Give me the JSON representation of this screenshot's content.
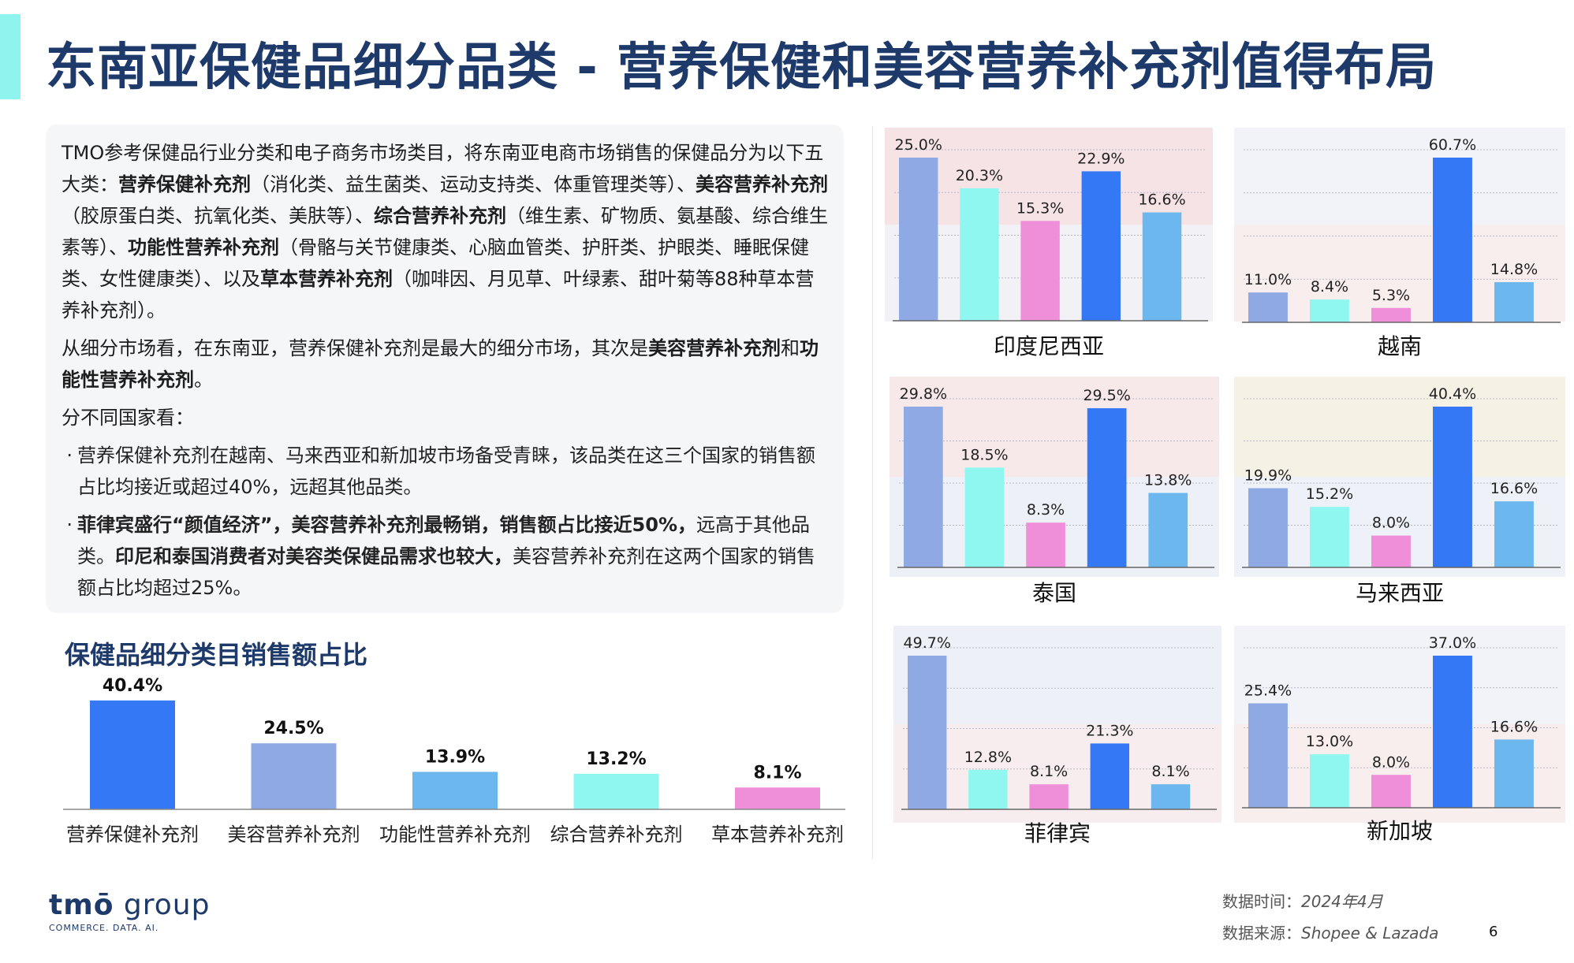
{
  "title": "东南亚保健品细分品类 - 营养保健和美容营养补充剂值得布局",
  "intro": {
    "p1": [
      {
        "t": "TMO参考保健品行业分类和电子商务市场类目，将东南亚电商市场销售的保健品分为以下五大类：",
        "b": false
      },
      {
        "t": "营养保健补充剂",
        "b": true
      },
      {
        "t": "（消化类、益生菌类、运动支持类、体重管理类等）、",
        "b": false
      },
      {
        "t": "美容营养补充剂",
        "b": true
      },
      {
        "t": "（胶原蛋白类、抗氧化类、美肤等）、",
        "b": false
      },
      {
        "t": "综合营养补充剂",
        "b": true
      },
      {
        "t": "（维生素、矿物质、氨基酸、综合维生素等）、",
        "b": false
      },
      {
        "t": "功能性营养补充剂",
        "b": true
      },
      {
        "t": "（骨骼与关节健康类、心脑血管类、护肝类、护眼类、睡眠保健类、女性健康类）、以及",
        "b": false
      },
      {
        "t": "草本营养补充剂",
        "b": true
      },
      {
        "t": "（咖啡因、月见草、叶绿素、甜叶菊等88种草本营养补充剂）。",
        "b": false
      }
    ],
    "p2": [
      {
        "t": "从细分市场看，在东南亚，营养保健补充剂是最大的细分市场，其次是",
        "b": false
      },
      {
        "t": "美容营养补充剂",
        "b": true
      },
      {
        "t": "和",
        "b": false
      },
      {
        "t": "功能性营养补充剂",
        "b": true
      },
      {
        "t": "。",
        "b": false
      }
    ],
    "p3": "分不同国家看：",
    "bullets": [
      [
        {
          "t": "营养保健补充剂在越南、马来西亚和新加坡市场备受青睐，该品类在这三个国家的销售额占比均接近或超过40%，远超其他品类。",
          "b": false
        }
      ],
      [
        {
          "t": "菲律宾盛行“颜值经济”，美容营养补充剂最畅销，销售额占比接近50%，",
          "b": true
        },
        {
          "t": "远高于其他品类。",
          "b": false
        },
        {
          "t": "印尼和泰国消费者对美容类保健品需求也较大，",
          "b": true
        },
        {
          "t": "美容营养补充剂在这两个国家的销售额占比均超过25%。",
          "b": false
        }
      ]
    ],
    "bullet_mark": "·"
  },
  "main_chart_title": "保健品细分类目销售额占比",
  "chart_data": [
    {
      "type": "bar",
      "title": "保健品细分类目销售额占比",
      "categories": [
        "营养保健补充剂",
        "美容营养补充剂",
        "功能性营养补充剂",
        "综合营养补充剂",
        "草本营养补充剂"
      ],
      "values": [
        40.4,
        24.5,
        13.9,
        13.2,
        8.1
      ],
      "labels": [
        "40.4%",
        "24.5%",
        "13.9%",
        "13.2%",
        "8.1%"
      ],
      "colors": [
        "#3478f6",
        "#8ea9e4",
        "#6cb7ee",
        "#8ff7f0",
        "#f08fd9"
      ],
      "unit": "%"
    },
    {
      "type": "bar",
      "title": "印度尼西亚",
      "values": [
        25.0,
        20.3,
        15.3,
        22.9,
        16.6
      ],
      "labels": [
        "25.0%",
        "20.3%",
        "15.3%",
        "22.9%",
        "16.6%"
      ],
      "unit": "%"
    },
    {
      "type": "bar",
      "title": "越南",
      "values": [
        11.0,
        8.4,
        5.3,
        60.7,
        14.8
      ],
      "labels": [
        "11.0%",
        "8.4%",
        "5.3%",
        "60.7%",
        "14.8%"
      ],
      "unit": "%"
    },
    {
      "type": "bar",
      "title": "泰国",
      "values": [
        29.8,
        18.5,
        8.3,
        29.5,
        13.8
      ],
      "labels": [
        "29.8%",
        "18.5%",
        "8.3%",
        "29.5%",
        "13.8%"
      ],
      "unit": "%"
    },
    {
      "type": "bar",
      "title": "马来西亚",
      "values": [
        19.9,
        15.2,
        8.0,
        40.4,
        16.6
      ],
      "labels": [
        "19.9%",
        "15.2%",
        "8.0%",
        "40.4%",
        "16.6%"
      ],
      "unit": "%"
    },
    {
      "type": "bar",
      "title": "菲律宾",
      "values": [
        49.7,
        12.8,
        8.1,
        21.3,
        8.1
      ],
      "labels": [
        "49.7%",
        "12.8%",
        "8.1%",
        "21.3%",
        "8.1%"
      ],
      "unit": "%"
    },
    {
      "type": "bar",
      "title": "新加坡",
      "values": [
        25.4,
        13.0,
        8.0,
        37.0,
        16.6
      ],
      "labels": [
        "25.4%",
        "13.0%",
        "8.0%",
        "37.0%",
        "16.6%"
      ],
      "unit": "%"
    }
  ],
  "country_bar_colors": [
    "#8ea9e4",
    "#8ff7f0",
    "#f08fd9",
    "#3478f6",
    "#6cb7ee"
  ],
  "logo": {
    "main": "tmō",
    "group": " group",
    "sub": "COMMERCE. DATA. AI."
  },
  "meta": {
    "time_label": "数据时间：",
    "time_value": "2024年4月",
    "source_label": "数据来源：",
    "source_value": "Shopee & Lazada"
  },
  "page_number": "6"
}
